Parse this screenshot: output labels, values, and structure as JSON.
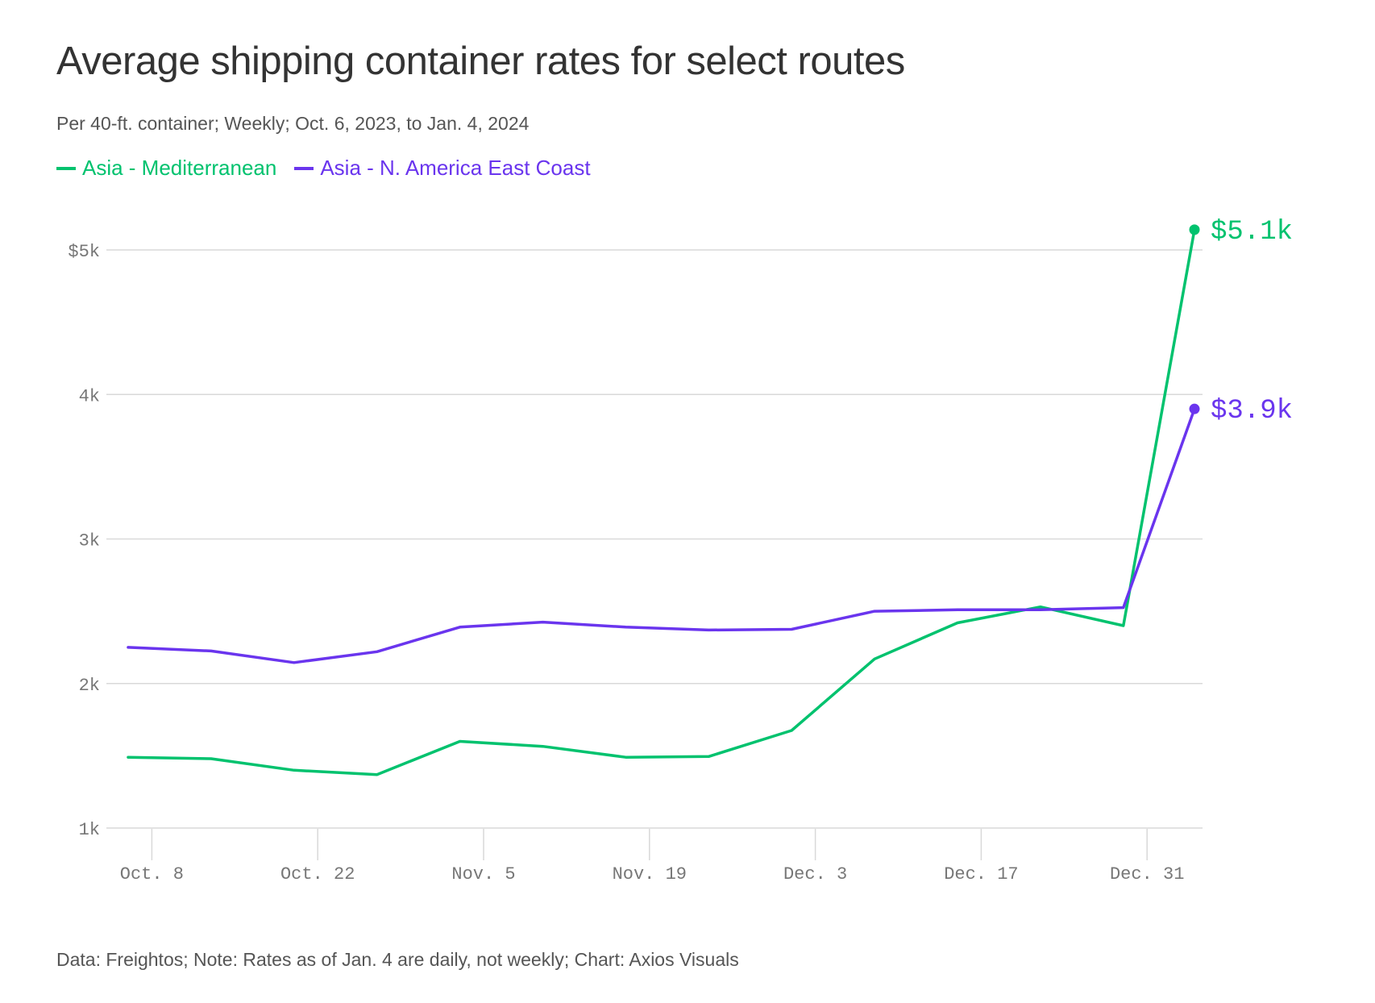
{
  "title": "Average shipping container rates for select routes",
  "subtitle": "Per 40-ft. container; Weekly; Oct. 6, 2023, to Jan. 4, 2024",
  "footer": "Data: Freightos; Note: Rates as of Jan. 4 are daily, not weekly; Chart: Axios Visuals",
  "colors": {
    "green": "#00c26e",
    "purple": "#6a35ee",
    "grid": "#d9d9d9",
    "tick": "#777777"
  },
  "chart_data": {
    "type": "line",
    "title": "Average shipping container rates for select routes",
    "xlabel": "",
    "ylabel": "",
    "ylim": [
      1000,
      5300
    ],
    "y_ticks": [
      {
        "value": 1000,
        "label": "1k"
      },
      {
        "value": 2000,
        "label": "2k"
      },
      {
        "value": 3000,
        "label": "3k"
      },
      {
        "value": 4000,
        "label": "4k"
      },
      {
        "value": 5000,
        "label": "$5k"
      }
    ],
    "x_domain_days": [
      0,
      90
    ],
    "x_ticks": [
      {
        "day": 2,
        "label": "Oct. 8"
      },
      {
        "day": 16,
        "label": "Oct. 22"
      },
      {
        "day": 30,
        "label": "Nov. 5"
      },
      {
        "day": 44,
        "label": "Nov. 19"
      },
      {
        "day": 58,
        "label": "Dec. 3"
      },
      {
        "day": 72,
        "label": "Dec. 17"
      },
      {
        "day": 86,
        "label": "Dec. 31"
      }
    ],
    "x_days": [
      0,
      7,
      14,
      21,
      28,
      35,
      42,
      49,
      56,
      63,
      70,
      77,
      84,
      90
    ],
    "series": [
      {
        "name": "Asia - Mediterranean",
        "color": "#00c26e",
        "values": [
          1490,
          1480,
          1400,
          1370,
          1600,
          1565,
          1490,
          1495,
          1675,
          2170,
          2420,
          2530,
          2400,
          5140
        ],
        "end_label": "$5.1k"
      },
      {
        "name": "Asia - N. America East Coast",
        "color": "#6a35ee",
        "values": [
          2250,
          2225,
          2145,
          2220,
          2390,
          2425,
          2390,
          2370,
          2375,
          2500,
          2510,
          2510,
          2525,
          3900
        ],
        "end_label": "$3.9k"
      }
    ],
    "legend": "top-left"
  }
}
